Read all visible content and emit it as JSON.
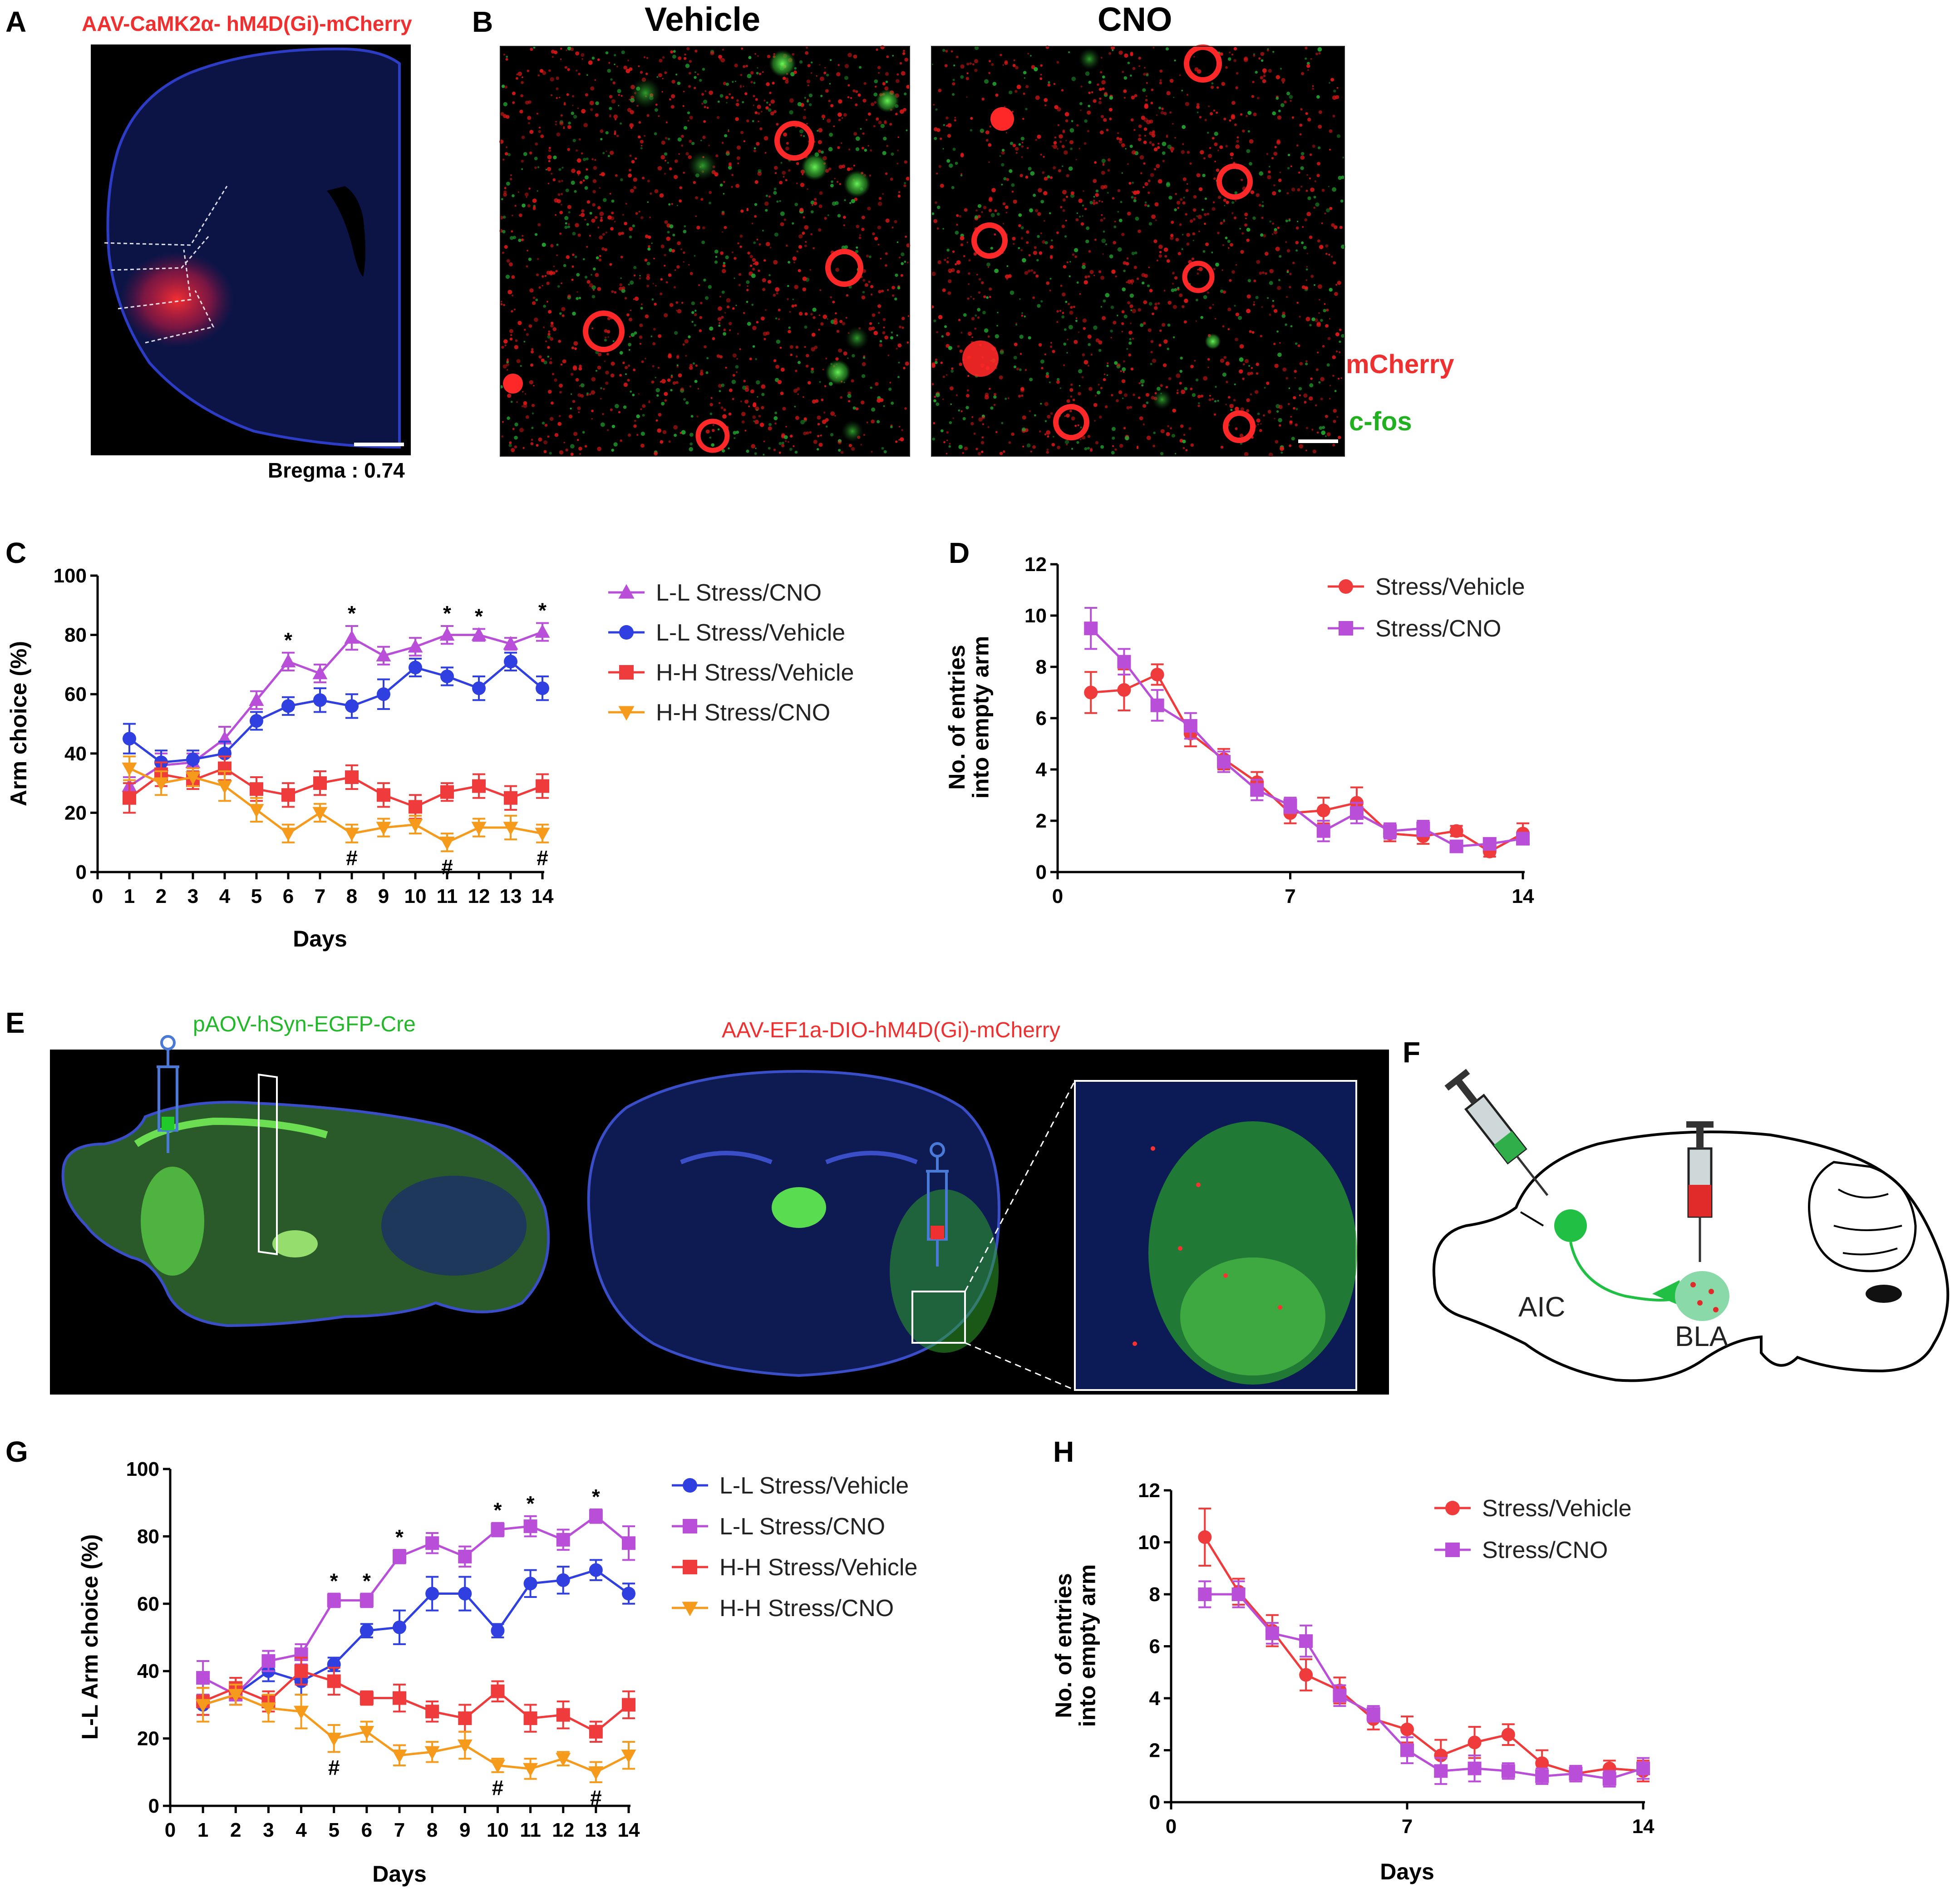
{
  "panel_labels": {
    "A": "A",
    "B": "B",
    "C": "C",
    "D": "D",
    "E": "E",
    "F": "F",
    "G": "G",
    "H": "H"
  },
  "panel_a": {
    "virus_label": "AAV-CaMK2α- hM4D(Gi)-mCherry",
    "bregma_label": "Bregma : 0.74"
  },
  "panel_b": {
    "vehicle_label": "Vehicle",
    "cno_label": "CNO",
    "mcherry_label": "mCherry",
    "cfos_label": "c-fos"
  },
  "panel_e": {
    "virus_left": "pAOV-hSyn-EGFP-Cre",
    "virus_right": "AAV-EF1a-DIO-hM4D(Gi)-mCherry"
  },
  "panel_f": {
    "aic_label": "AIC",
    "bla_label": "BLA"
  },
  "colors": {
    "purple": "#b94fd9",
    "blue": "#2f3fe0",
    "red": "#ef3b3b",
    "orange": "#f59a1b",
    "cfos_green": "#22c92a",
    "mcherry_red": "#ff2020",
    "brain_blue": "#1f2fa0"
  },
  "chart_data": [
    {
      "id": "C",
      "type": "line",
      "ylabel": "Arm choice (%)",
      "xlabel": "Days",
      "ylim": [
        0,
        100
      ],
      "yticks": [
        0,
        20,
        40,
        60,
        80,
        100
      ],
      "x": [
        1,
        2,
        3,
        4,
        5,
        6,
        7,
        8,
        9,
        10,
        11,
        12,
        13,
        14
      ],
      "xticks": [
        0,
        1,
        2,
        3,
        4,
        5,
        6,
        7,
        8,
        9,
        10,
        11,
        12,
        13,
        14
      ],
      "legend": "right",
      "series": [
        {
          "name": "L-L Stress/CNO",
          "color": "#b94fd9",
          "marker": "triangle",
          "values": [
            29,
            36,
            37,
            45,
            58,
            71,
            67,
            79,
            73,
            76,
            80,
            80,
            77,
            81
          ],
          "err": [
            3,
            4,
            3,
            4,
            3,
            3,
            3,
            4,
            3,
            3,
            3,
            2,
            2,
            3
          ]
        },
        {
          "name": "L-L Stress/Vehicle",
          "color": "#2f3fe0",
          "marker": "circle",
          "values": [
            45,
            37,
            38,
            40,
            51,
            56,
            58,
            56,
            60,
            69,
            66,
            62,
            71,
            62
          ],
          "err": [
            5,
            4,
            3,
            4,
            3,
            3,
            4,
            4,
            5,
            3,
            3,
            4,
            3,
            4
          ]
        },
        {
          "name": "H-H Stress/Vehicle",
          "color": "#ef3b3b",
          "marker": "square",
          "values": [
            25,
            33,
            31,
            35,
            28,
            26,
            30,
            32,
            26,
            22,
            27,
            29,
            25,
            29
          ],
          "err": [
            5,
            4,
            3,
            4,
            4,
            4,
            4,
            4,
            4,
            4,
            3,
            4,
            4,
            4
          ]
        },
        {
          "name": "H-H Stress/CNO",
          "color": "#f59a1b",
          "marker": "triangle-down",
          "values": [
            35,
            30,
            32,
            29,
            21,
            13,
            20,
            13,
            15,
            16,
            10,
            15,
            15,
            13
          ],
          "err": [
            4,
            4,
            3,
            5,
            4,
            3,
            3,
            3,
            3,
            3,
            3,
            3,
            4,
            3
          ]
        }
      ],
      "annotations": [
        {
          "x": 6,
          "text": "*",
          "series": 0
        },
        {
          "x": 8,
          "text": "*",
          "series": 0
        },
        {
          "x": 11,
          "text": "*",
          "series": 0
        },
        {
          "x": 12,
          "text": "*",
          "series": 0
        },
        {
          "x": 14,
          "text": "*",
          "series": 0
        },
        {
          "x": 8,
          "text": "#",
          "series": 3
        },
        {
          "x": 11,
          "text": "#",
          "series": 3
        },
        {
          "x": 14,
          "text": "#",
          "series": 3
        }
      ]
    },
    {
      "id": "D",
      "type": "line",
      "ylabel": "No. of entries into empty arm",
      "xlabel": "",
      "ylim": [
        0,
        12
      ],
      "yticks": [
        0,
        2,
        4,
        6,
        8,
        10,
        12
      ],
      "x": [
        1,
        2,
        3,
        4,
        5,
        6,
        7,
        8,
        9,
        10,
        11,
        12,
        13,
        14
      ],
      "xticks": [
        0,
        7,
        14
      ],
      "xlim": [
        0,
        14
      ],
      "legend": "top-right",
      "series": [
        {
          "name": "Stress/Vehicle",
          "color": "#ef3b3b",
          "marker": "circle",
          "values": [
            7.0,
            7.1,
            7.7,
            5.4,
            4.4,
            3.5,
            2.3,
            2.4,
            2.7,
            1.5,
            1.4,
            1.6,
            0.8,
            1.5
          ],
          "err": [
            0.8,
            0.8,
            0.4,
            0.5,
            0.4,
            0.4,
            0.4,
            0.5,
            0.6,
            0.3,
            0.3,
            0.2,
            0.2,
            0.4
          ]
        },
        {
          "name": "Stress/CNO",
          "color": "#b94fd9",
          "marker": "square",
          "values": [
            9.5,
            8.2,
            6.5,
            5.7,
            4.3,
            3.2,
            2.6,
            1.6,
            2.3,
            1.6,
            1.7,
            1.0,
            1.1,
            1.3
          ],
          "err": [
            0.8,
            0.5,
            0.6,
            0.5,
            0.4,
            0.4,
            0.3,
            0.4,
            0.4,
            0.3,
            0.3,
            0.2,
            0.2,
            0.2
          ]
        }
      ]
    },
    {
      "id": "G",
      "type": "line",
      "ylabel": "L-L Arm choice (%)",
      "xlabel": "Days",
      "ylim": [
        0,
        100
      ],
      "yticks": [
        0,
        20,
        40,
        60,
        80,
        100
      ],
      "x": [
        1,
        2,
        3,
        4,
        5,
        6,
        7,
        8,
        9,
        10,
        11,
        12,
        13,
        14
      ],
      "xticks": [
        0,
        1,
        2,
        3,
        4,
        5,
        6,
        7,
        8,
        9,
        10,
        11,
        12,
        13,
        14
      ],
      "legend": "right",
      "series": [
        {
          "name": "L-L Stress/Vehicle",
          "color": "#2f3fe0",
          "marker": "circle",
          "values": [
            30,
            33,
            40,
            37,
            42,
            52,
            53,
            63,
            63,
            52,
            66,
            67,
            70,
            63
          ],
          "err": [
            3,
            3,
            3,
            4,
            2,
            2,
            5,
            5,
            5,
            2,
            4,
            4,
            3,
            3
          ]
        },
        {
          "name": "L-L Stress/CNO",
          "color": "#b94fd9",
          "marker": "square",
          "values": [
            38,
            33,
            43,
            45,
            61,
            61,
            74,
            78,
            74,
            82,
            83,
            79,
            86,
            78
          ],
          "err": [
            5,
            3,
            3,
            3,
            2,
            2,
            2,
            3,
            3,
            2,
            3,
            3,
            2,
            5
          ]
        },
        {
          "name": "H-H Stress/Vehicle",
          "color": "#ef3b3b",
          "marker": "square",
          "values": [
            31,
            35,
            31,
            40,
            37,
            32,
            32,
            28,
            26,
            34,
            26,
            27,
            22,
            30
          ],
          "err": [
            4,
            3,
            3,
            4,
            4,
            2,
            4,
            3,
            4,
            3,
            4,
            4,
            3,
            4
          ]
        },
        {
          "name": "H-H Stress/CNO",
          "color": "#f59a1b",
          "marker": "triangle-down",
          "values": [
            30,
            33,
            29,
            28,
            20,
            22,
            15,
            16,
            18,
            12,
            11,
            14,
            10,
            15
          ],
          "err": [
            5,
            3,
            4,
            5,
            4,
            3,
            3,
            3,
            4,
            2,
            3,
            2,
            3,
            4
          ]
        }
      ],
      "annotations": [
        {
          "x": 5,
          "text": "*",
          "series": 1
        },
        {
          "x": 6,
          "text": "*",
          "series": 1
        },
        {
          "x": 7,
          "text": "*",
          "series": 1
        },
        {
          "x": 10,
          "text": "*",
          "series": 1
        },
        {
          "x": 11,
          "text": "*",
          "series": 1
        },
        {
          "x": 13,
          "text": "*",
          "series": 1
        },
        {
          "x": 5,
          "text": "#",
          "series": 3
        },
        {
          "x": 10,
          "text": "#",
          "series": 3
        },
        {
          "x": 13,
          "text": "#",
          "series": 3
        }
      ]
    },
    {
      "id": "H",
      "type": "line",
      "ylabel": "No. of entries into empty arm",
      "xlabel": "Days",
      "ylim": [
        0,
        12
      ],
      "yticks": [
        0,
        2,
        4,
        6,
        8,
        10,
        12
      ],
      "x": [
        1,
        2,
        3,
        4,
        5,
        6,
        7,
        8,
        9,
        10,
        11,
        12,
        13,
        14
      ],
      "xticks": [
        0,
        7,
        14
      ],
      "xlim": [
        0,
        14
      ],
      "legend": "top-right",
      "series": [
        {
          "name": "Stress/Vehicle",
          "color": "#ef3b3b",
          "marker": "circle",
          "values": [
            10.2,
            8.1,
            6.6,
            4.9,
            4.3,
            3.2,
            2.8,
            1.8,
            2.3,
            2.6,
            1.5,
            1.1,
            1.3,
            1.2
          ],
          "err": [
            1.1,
            0.5,
            0.6,
            0.6,
            0.5,
            0.4,
            0.5,
            0.6,
            0.6,
            0.4,
            0.5,
            0.3,
            0.3,
            0.4
          ]
        },
        {
          "name": "Stress/CNO",
          "color": "#b94fd9",
          "marker": "square",
          "values": [
            8.0,
            8.0,
            6.5,
            6.2,
            4.1,
            3.4,
            2.0,
            1.2,
            1.3,
            1.2,
            1.0,
            1.1,
            0.9,
            1.3
          ],
          "err": [
            0.5,
            0.5,
            0.4,
            0.6,
            0.4,
            0.3,
            0.5,
            0.5,
            0.5,
            0.3,
            0.3,
            0.3,
            0.3,
            0.4
          ]
        }
      ]
    }
  ]
}
